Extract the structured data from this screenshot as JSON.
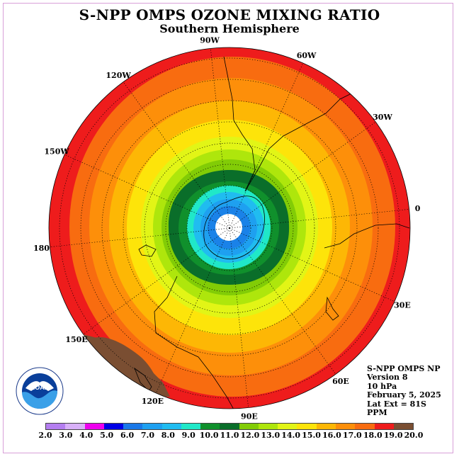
{
  "header": {
    "title": "S-NPP OMPS OZONE MIXING RATIO",
    "subtitle": "Southern Hemisphere"
  },
  "map": {
    "longitude_labels": [
      "0",
      "30W",
      "60W",
      "90W",
      "120W",
      "150W",
      "180",
      "150E",
      "120E",
      "90E",
      "60E",
      "30E"
    ],
    "ring_colors_outer_to_inner": [
      "#ee1c1c",
      "#f86c10",
      "#fd8f0a",
      "#fdb705",
      "#fde40a",
      "#e2f516",
      "#aee60c",
      "#82cc06",
      "#0a6e2a",
      "#10902c",
      "#20e8c8",
      "#20bcf0",
      "#1ea0f0",
      "#1a82e8",
      "#ffffff"
    ],
    "low_region_color": "#7a4e32"
  },
  "info": {
    "lines": [
      "S-NPP OMPS NP",
      "Version 8",
      "10 hPa",
      "February 5, 2025",
      "Lat Ext = 81S",
      "PPM"
    ]
  },
  "logo": {
    "text": "NOAA",
    "icon": "noaa-logo-icon"
  },
  "colorbar": {
    "colors": [
      "#b47ef0",
      "#d8b0f8",
      "#ee00ee",
      "#0000e6",
      "#1a78e8",
      "#1ea0f0",
      "#20bcf0",
      "#20e8c8",
      "#10902c",
      "#0a6e2a",
      "#82cc06",
      "#aee60c",
      "#e2f516",
      "#fde40a",
      "#fdb705",
      "#fd8f0a",
      "#f86c10",
      "#ee1c1c",
      "#7a4e32"
    ],
    "ticks": [
      "2.0",
      "3.0",
      "4.0",
      "5.0",
      "6.0",
      "7.0",
      "8.0",
      "9.0",
      "10.0",
      "11.0",
      "12.0",
      "13.0",
      "14.0",
      "15.0",
      "16.0",
      "17.0",
      "18.0",
      "19.0",
      "20.0"
    ]
  }
}
